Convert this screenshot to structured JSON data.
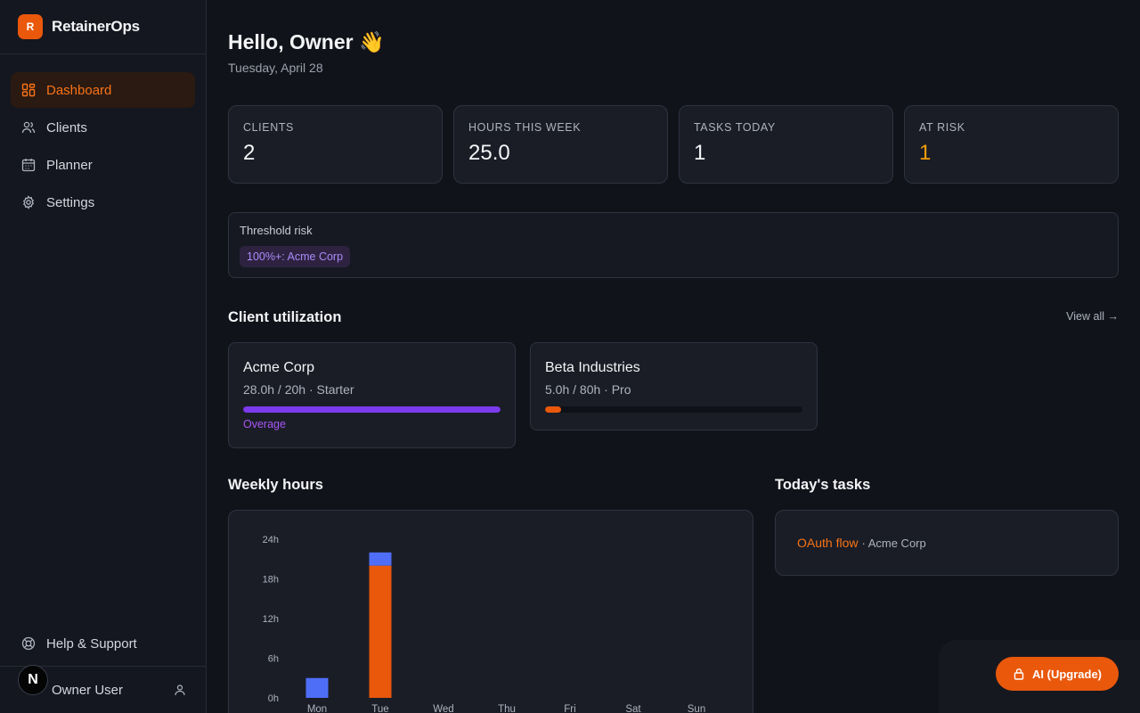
{
  "app": {
    "logo_letter": "R",
    "name": "RetainerOps"
  },
  "sidebar": {
    "items": [
      {
        "label": "Dashboard",
        "icon": "dashboard-icon",
        "active": true
      },
      {
        "label": "Clients",
        "icon": "users-icon"
      },
      {
        "label": "Planner",
        "icon": "calendar-icon"
      },
      {
        "label": "Settings",
        "icon": "gear-icon"
      }
    ],
    "help_label": "Help & Support",
    "user_name": "Owner User",
    "avatar_letter": "N"
  },
  "header": {
    "greeting": "Hello, Owner 👋",
    "date": "Tuesday, April 28"
  },
  "stats": [
    {
      "label": "CLIENTS",
      "value": "2"
    },
    {
      "label": "HOURS THIS WEEK",
      "value": "25.0"
    },
    {
      "label": "TASKS TODAY",
      "value": "1"
    },
    {
      "label": "AT RISK",
      "value": "1"
    }
  ],
  "risk": {
    "title": "Threshold risk",
    "chip": "100%+: Acme Corp"
  },
  "utilization": {
    "title": "Client utilization",
    "view_all": "View all →",
    "clients": [
      {
        "name": "Acme Corp",
        "meta": "28.0h / 20h · Starter",
        "fraction": 1.0,
        "color": "#7c3aed",
        "status": "Overage"
      },
      {
        "name": "Beta Industries",
        "meta": "5.0h / 80h · Pro",
        "fraction": 0.0625,
        "color": "#ea580c",
        "status": ""
      }
    ]
  },
  "weekly": {
    "title": "Weekly hours"
  },
  "tasks": {
    "title": "Today's tasks",
    "items": [
      {
        "name": "OAuth flow",
        "client": "· Acme Corp"
      }
    ]
  },
  "ai_button": {
    "label": "AI (Upgrade)"
  },
  "chart_data": {
    "type": "bar",
    "stacked": true,
    "categories": [
      "Mon",
      "Tue",
      "Wed",
      "Thu",
      "Fri",
      "Sat",
      "Sun"
    ],
    "series": [
      {
        "values": [
          0,
          20,
          0,
          0,
          0,
          0,
          0
        ],
        "color": "#ea580c"
      },
      {
        "values": [
          3,
          2,
          0,
          0,
          0,
          0,
          0
        ],
        "color": "#4f6ef7"
      }
    ],
    "yticks": [
      "0h",
      "6h",
      "12h",
      "18h",
      "24h"
    ],
    "ylim": [
      0,
      24
    ],
    "grid": false
  }
}
